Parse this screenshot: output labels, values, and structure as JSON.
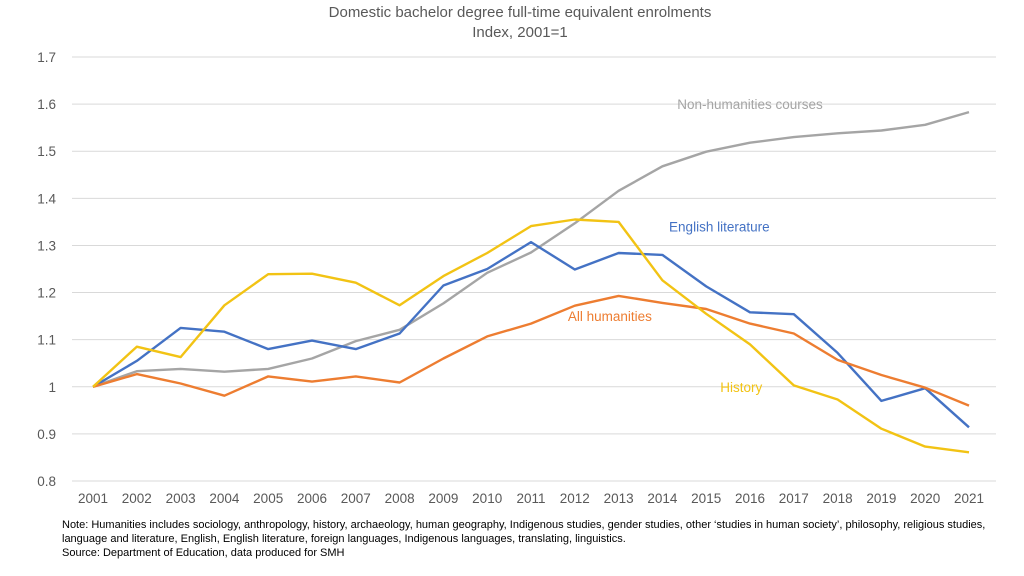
{
  "chart_data": {
    "type": "line",
    "title": "Domestic bachelor degree full-time equivalent enrolments",
    "subtitle": "Index, 2001=1",
    "xlabel": "",
    "ylabel": "",
    "ylim": [
      0.8,
      1.7
    ],
    "yticks": [
      "0.8",
      "0.9",
      "1",
      "1.1",
      "1.2",
      "1.3",
      "1.4",
      "1.5",
      "1.6",
      "1.7"
    ],
    "ytick_values": [
      0.8,
      0.9,
      1.0,
      1.1,
      1.2,
      1.3,
      1.4,
      1.5,
      1.6,
      1.7
    ],
    "grid": true,
    "legend": "inline labels",
    "categories": [
      "2001",
      "2002",
      "2003",
      "2004",
      "2005",
      "2006",
      "2007",
      "2008",
      "2009",
      "2010",
      "2011",
      "2012",
      "2013",
      "2014",
      "2015",
      "2016",
      "2017",
      "2018",
      "2019",
      "2020",
      "2021"
    ],
    "series": [
      {
        "name": "Non-humanities courses",
        "color": "#a5a5a5",
        "label_anchor": {
          "x_index": 15,
          "y_value": 1.6
        },
        "values": [
          1.0,
          1.033,
          1.038,
          1.032,
          1.038,
          1.06,
          1.097,
          1.121,
          1.177,
          1.242,
          1.285,
          1.347,
          1.416,
          1.468,
          1.499,
          1.518,
          1.53,
          1.538,
          1.544,
          1.556,
          1.583
        ]
      },
      {
        "name": "English literature",
        "color": "#4472c4",
        "label_anchor": {
          "x_index": 14.3,
          "y_value": 1.34
        },
        "values": [
          1.0,
          1.055,
          1.125,
          1.117,
          1.08,
          1.098,
          1.08,
          1.113,
          1.215,
          1.25,
          1.307,
          1.249,
          1.284,
          1.28,
          1.213,
          1.158,
          1.154,
          1.072,
          0.97,
          0.997,
          0.914
        ]
      },
      {
        "name": "All humanities",
        "color": "#ed7d31",
        "label_anchor": {
          "x_index": 11.8,
          "y_value": 1.15
        },
        "values": [
          1.0,
          1.027,
          1.007,
          0.981,
          1.022,
          1.011,
          1.022,
          1.009,
          1.06,
          1.107,
          1.134,
          1.172,
          1.193,
          1.178,
          1.165,
          1.134,
          1.113,
          1.057,
          1.025,
          0.998,
          0.96
        ]
      },
      {
        "name": "History",
        "color": "#f2c314",
        "label_anchor": {
          "x_index": 14.8,
          "y_value": 1.0
        },
        "values": [
          1.0,
          1.085,
          1.063,
          1.173,
          1.239,
          1.24,
          1.221,
          1.173,
          1.235,
          1.284,
          1.341,
          1.355,
          1.35,
          1.226,
          1.155,
          1.09,
          1.003,
          0.973,
          0.911,
          0.873,
          0.861
        ]
      }
    ]
  },
  "footer": {
    "note": "Note: Humanities includes sociology, anthropology,  history, archaeology, human  geography, Indigenous studies, gender studies, other ‘studies in human society’, philosophy, religious studies, language and literature, English, English literature, foreign languages, Indigenous languages, translating, linguistics.",
    "source": "Source: Department of Education, data produced for SMH"
  }
}
